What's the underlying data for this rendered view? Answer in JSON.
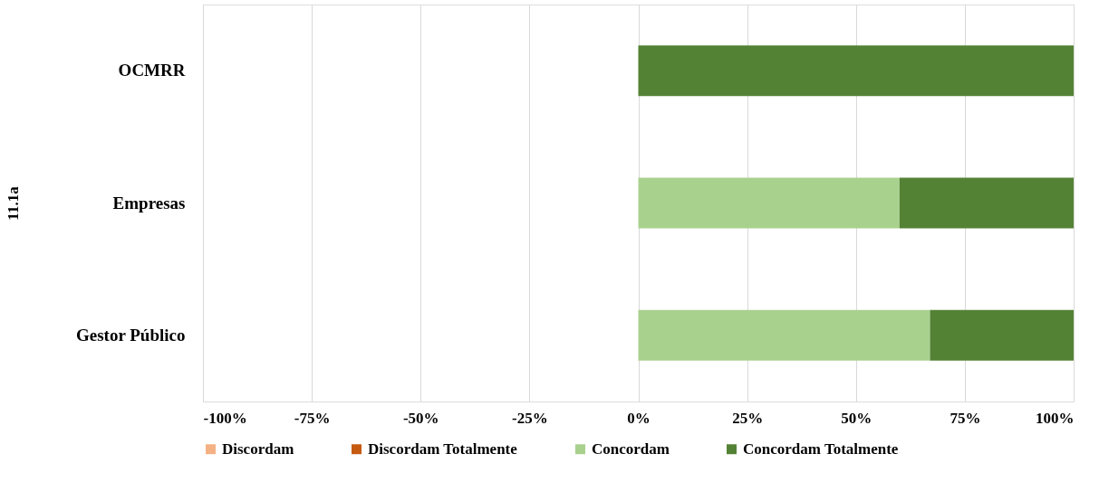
{
  "chart_data": {
    "type": "bar",
    "orientation": "horizontal",
    "stacked": true,
    "ylabel": "11.1a",
    "categories": [
      "OCMRR",
      "Empresas",
      "Gestor Público"
    ],
    "series": [
      {
        "name": "Discordam",
        "color": "#f4b183",
        "values": [
          null,
          null,
          null
        ]
      },
      {
        "name": "Discordam Totalmente",
        "color": "#c55a11",
        "values": [
          null,
          null,
          null
        ]
      },
      {
        "name": "Concordam",
        "color": "#a9d18e",
        "values": [
          0,
          60,
          67
        ]
      },
      {
        "name": "Concordam Totalmente",
        "color": "#548235",
        "values": [
          100,
          40,
          33
        ]
      }
    ],
    "xlim": [
      -100,
      100
    ],
    "xticks": [
      {
        "value": -100,
        "label": "-100%"
      },
      {
        "value": -75,
        "label": "-75%"
      },
      {
        "value": -50,
        "label": "-50%"
      },
      {
        "value": -25,
        "label": "-25%"
      },
      {
        "value": 0,
        "label": "0%"
      },
      {
        "value": 25,
        "label": "25%"
      },
      {
        "value": 50,
        "label": "50%"
      },
      {
        "value": 75,
        "label": "75%"
      },
      {
        "value": 100,
        "label": "100%"
      }
    ],
    "grid": "x",
    "legend": "bottom"
  }
}
